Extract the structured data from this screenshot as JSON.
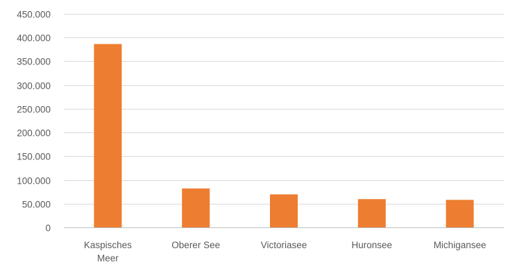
{
  "chart_data": {
    "type": "bar",
    "title": "",
    "xlabel": "",
    "ylabel": "",
    "categories": [
      [
        "Kaspisches",
        "Meer"
      ],
      [
        "Oberer See"
      ],
      [
        "Victoriasee"
      ],
      [
        "Huronsee"
      ],
      [
        "Michigansee"
      ]
    ],
    "values": [
      386400,
      82100,
      69500,
      59600,
      58000
    ],
    "ylim": [
      0,
      450000
    ],
    "yticks": [
      0,
      50000,
      100000,
      150000,
      200000,
      250000,
      300000,
      350000,
      400000,
      450000
    ],
    "ytick_labels": [
      "0",
      "50.000",
      "100.000",
      "150.000",
      "200.000",
      "250.000",
      "300.000",
      "350.000",
      "400.000",
      "450.000"
    ],
    "grid": true,
    "legend": "none",
    "bar_color": "#ed7d31",
    "grid_color": "#d9d9d9",
    "axis_color": "#bfbfbf",
    "text_color": "#595959"
  }
}
